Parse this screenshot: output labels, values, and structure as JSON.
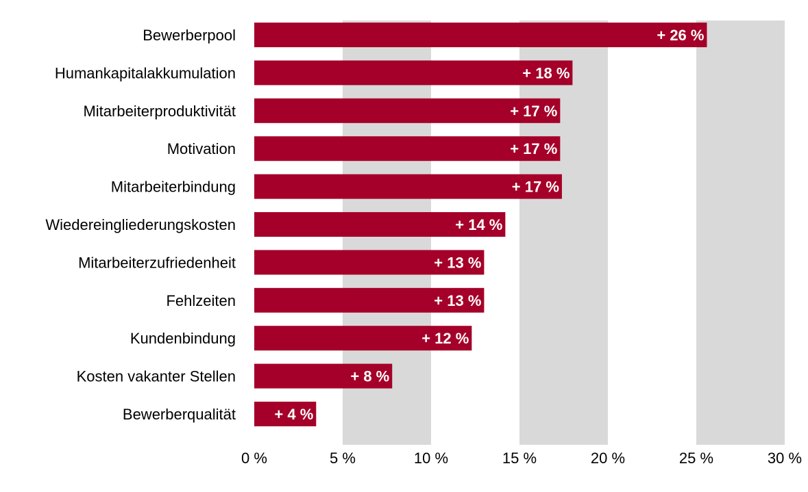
{
  "chart_data": {
    "type": "bar",
    "orientation": "horizontal",
    "categories": [
      "Bewerberpool",
      "Humankapitalakkumulation",
      "Mitarbeiterproduktivität",
      "Motivation",
      "Mitarbeiterbindung",
      "Wiedereingliederungskosten",
      "Mitarbeiterzufriedenheit",
      "Fehlzeiten",
      "Kundenbindung",
      "Kosten vakanter Stellen",
      "Bewerberqualität"
    ],
    "values": [
      25.6,
      18.0,
      17.3,
      17.3,
      17.4,
      14.2,
      13.0,
      13.0,
      12.3,
      7.8,
      3.5
    ],
    "data_labels": [
      "+ 26 %",
      "+ 18 %",
      "+ 17 %",
      "+ 17 %",
      "+ 17 %",
      "+ 14 %",
      "+ 13 %",
      "+ 13 %",
      "+ 12 %",
      "+ 8 %",
      "+ 4 %"
    ],
    "xlim": [
      0,
      30
    ],
    "x_ticks": [
      0,
      5,
      10,
      15,
      20,
      25,
      30
    ],
    "x_tick_labels": [
      "0 %",
      "5 %",
      "10 %",
      "15 %",
      "20 %",
      "25 %",
      "30 %"
    ],
    "shaded_bands": [
      [
        5,
        10
      ],
      [
        15,
        20
      ],
      [
        25,
        30
      ]
    ],
    "title": "",
    "xlabel": "",
    "ylabel": "",
    "grid": false,
    "legend": "none",
    "colors": {
      "bar": "#A50029",
      "band": "#D9D9D9",
      "data_label_text": "#FFFFFF",
      "axis_text": "#000000"
    }
  }
}
